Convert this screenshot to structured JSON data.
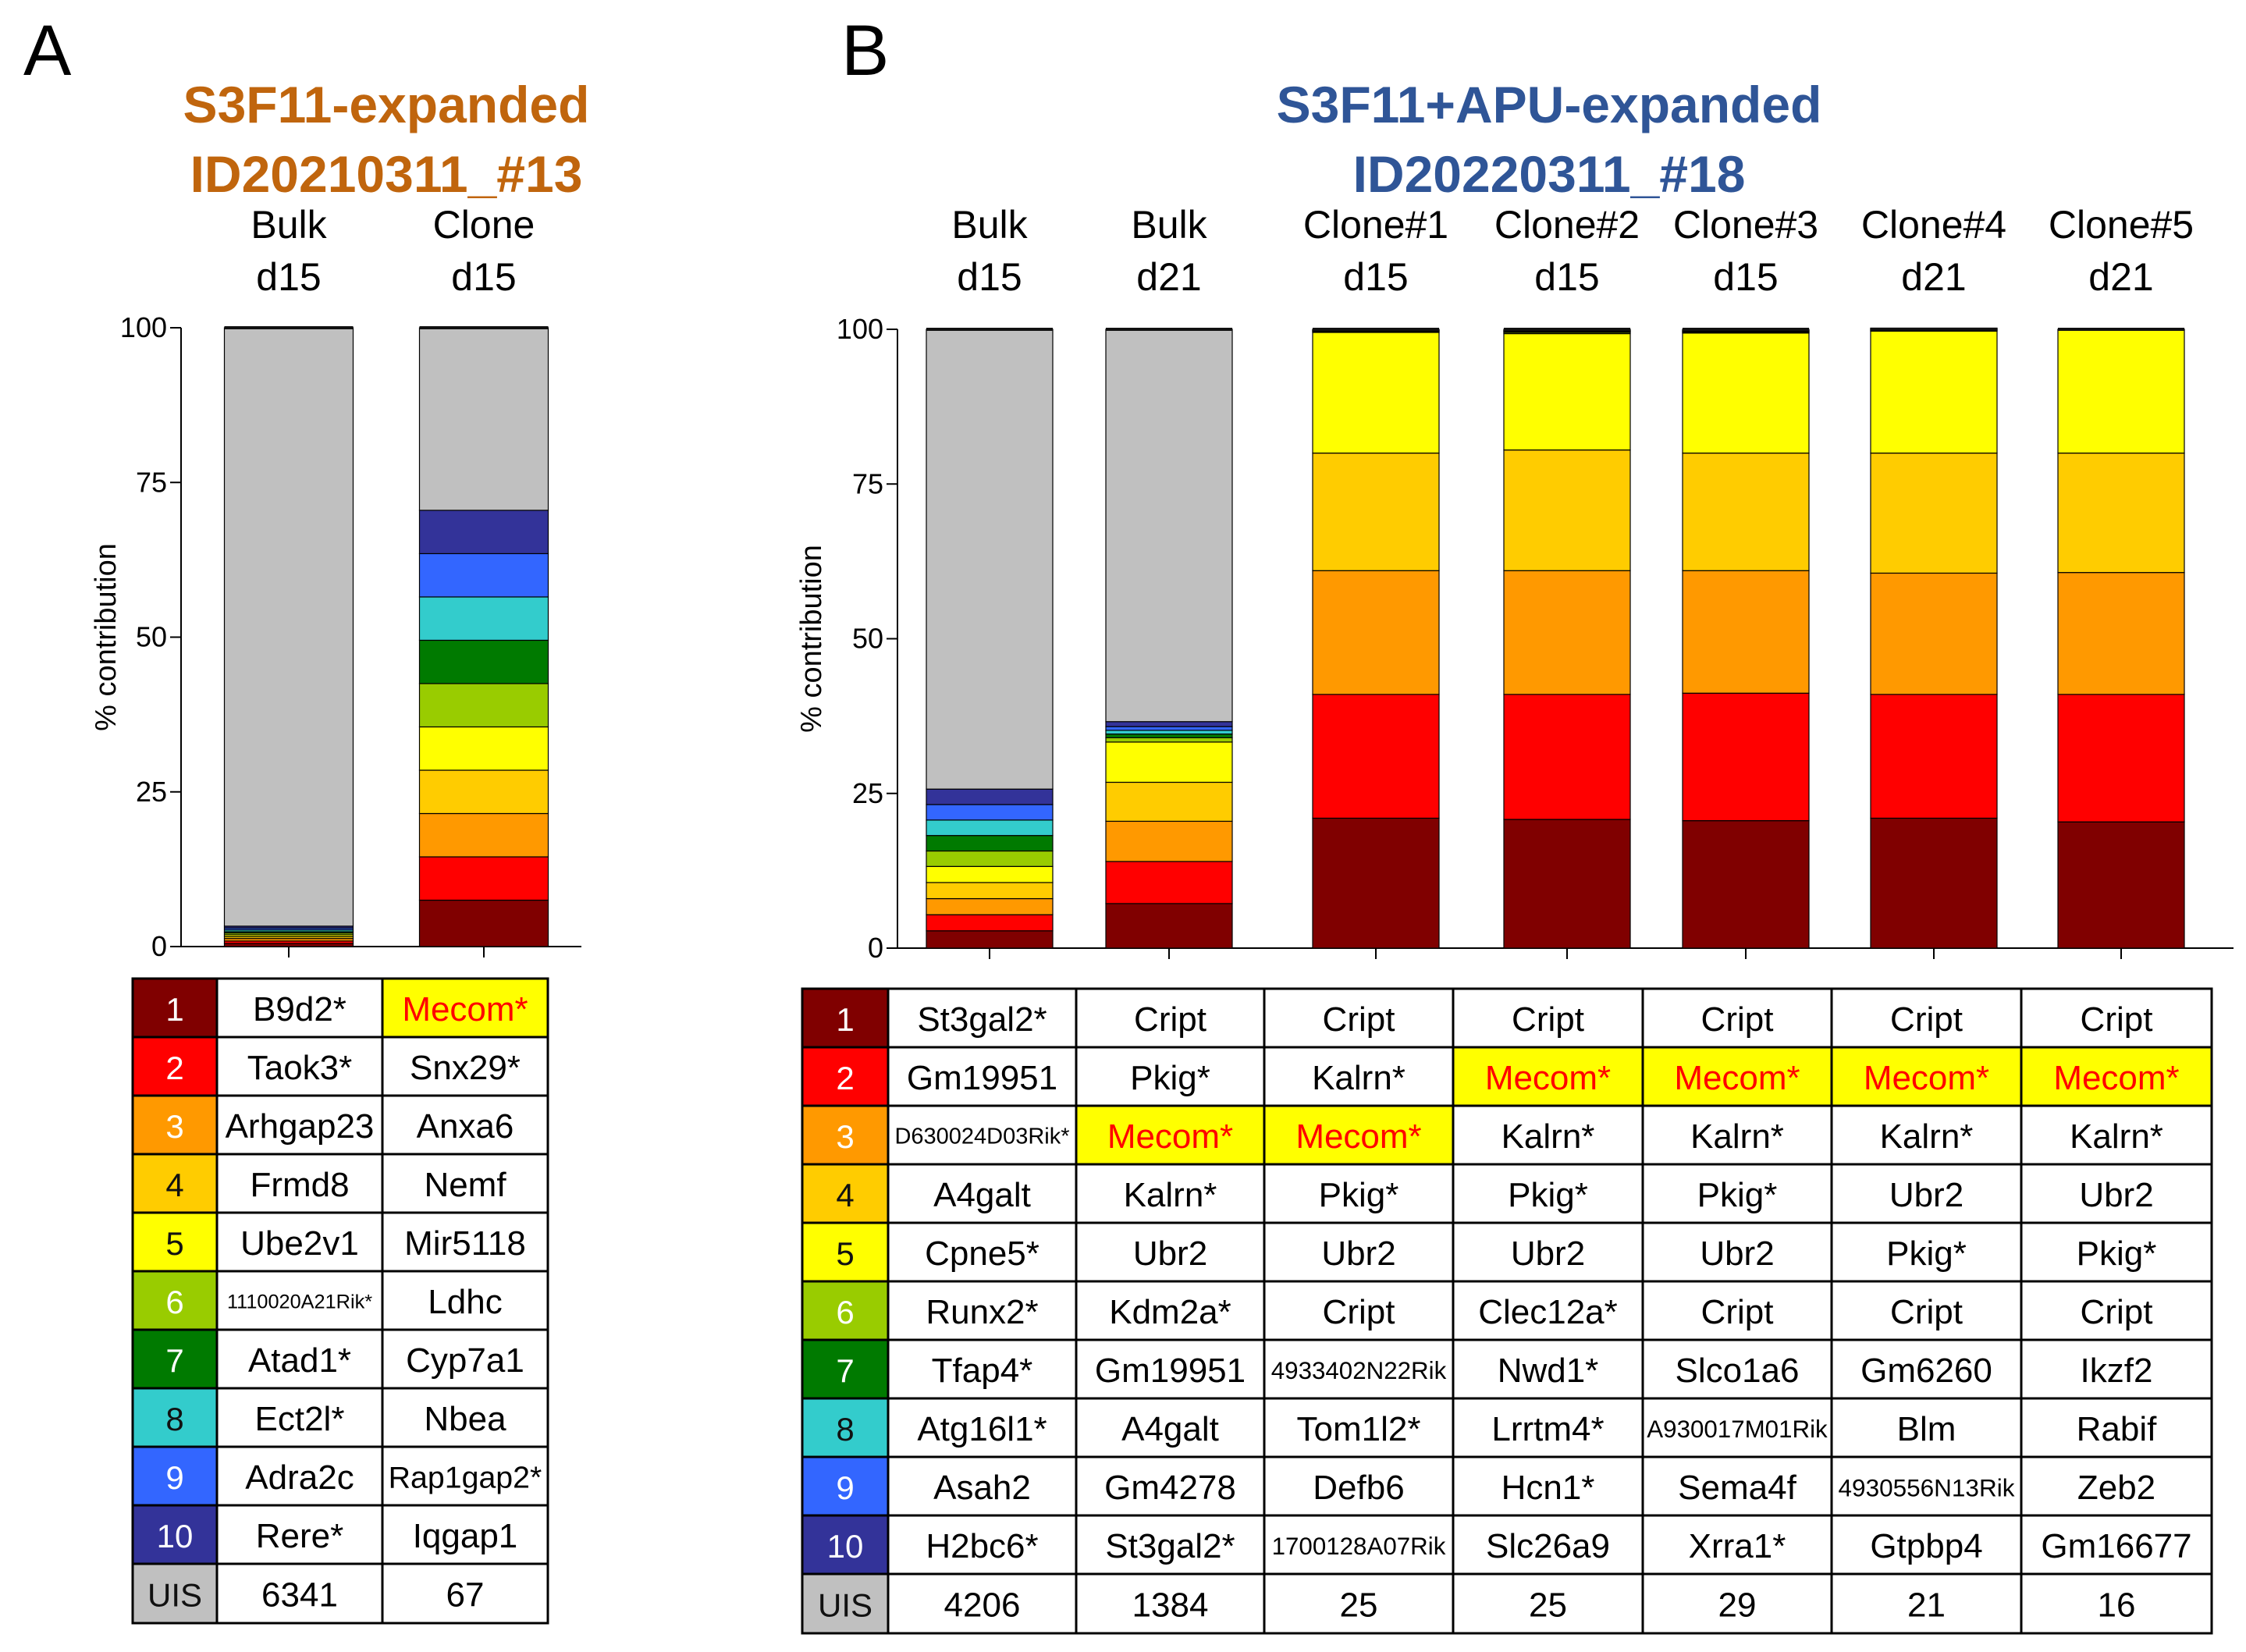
{
  "colors": [
    "#800000",
    "#ff0000",
    "#ff9900",
    "#ffcc00",
    "#ffff00",
    "#99cc00",
    "#007a00",
    "#33cccc",
    "#3366ff",
    "#333399"
  ],
  "rest_color": "#c0c0c0",
  "highlight_fill": "#ffff00",
  "highlight_text": "#ff0000",
  "chart_data": [
    {
      "type": "bar",
      "subtype": "stacked-100",
      "panel": "A",
      "title": "S3F11-expanded",
      "subtitle": "ID20210311_#13",
      "title_color": "#c0650d",
      "ylabel": "% contribution",
      "ylim": [
        0,
        100
      ],
      "yticks": [
        "0",
        "25",
        "50",
        "75",
        "100"
      ],
      "categories": [
        {
          "line1": "Bulk",
          "line2": "d15"
        },
        {
          "line1": "Clone",
          "line2": "d15"
        }
      ],
      "stacks": [
        [
          0.5,
          0.4,
          0.4,
          0.3,
          0.3,
          0.3,
          0.2,
          0.3,
          0.3,
          0.3
        ],
        [
          7.5,
          7.0,
          7.0,
          7.0,
          7.0,
          7.0,
          7.0,
          7.0,
          7.0,
          7.0
        ]
      ],
      "table": {
        "rank_labels": [
          "1",
          "2",
          "3",
          "4",
          "5",
          "6",
          "7",
          "8",
          "9",
          "10"
        ],
        "uis_label": "UIS",
        "columns": [
          {
            "genes": [
              "B9d2*",
              "Taok3*",
              "Arhgap23",
              "Frmd8",
              "Ube2v1",
              "1110020A21Rik*",
              "Atad1*",
              "Ect2l*",
              "Adra2c",
              "Rere*"
            ],
            "uis": "6341"
          },
          {
            "genes": [
              "Mecom*",
              "Snx29*",
              "Anxa6",
              "Nemf",
              "Mir5118",
              "Ldhc",
              "Cyp7a1",
              "Nbea",
              "Rap1gap2*",
              "Iqgap1"
            ],
            "uis": "67"
          }
        ]
      }
    },
    {
      "type": "bar",
      "subtype": "stacked-100",
      "panel": "B",
      "title": "S3F11+APU-expanded",
      "subtitle": "ID20220311_#18",
      "title_color": "#2f5597",
      "ylabel": "% contribution",
      "ylim": [
        0,
        100
      ],
      "yticks": [
        "0",
        "25",
        "50",
        "75",
        "100"
      ],
      "categories": [
        {
          "line1": "Bulk",
          "line2": "d15"
        },
        {
          "line1": "Bulk",
          "line2": "d21"
        },
        {
          "line1": "Clone#1",
          "line2": "d15"
        },
        {
          "line1": "Clone#2",
          "line2": "d15"
        },
        {
          "line1": "Clone#3",
          "line2": "d15"
        },
        {
          "line1": "Clone#4",
          "line2": "d21"
        },
        {
          "line1": "Clone#5",
          "line2": "d21"
        }
      ],
      "stacks": [
        [
          2.8,
          2.6,
          2.6,
          2.6,
          2.6,
          2.5,
          2.5,
          2.5,
          2.5,
          2.5
        ],
        [
          7.2,
          6.8,
          6.5,
          6.3,
          6.5,
          0.7,
          0.6,
          0.6,
          0.6,
          0.8
        ],
        [
          21.0,
          20.0,
          20.0,
          19.0,
          19.5,
          0.1,
          0.1,
          0.1,
          0.1,
          0.1
        ],
        [
          20.8,
          20.2,
          20.0,
          19.5,
          18.8,
          0.2,
          0.1,
          0.1,
          0.1,
          0.2
        ],
        [
          20.6,
          20.6,
          19.8,
          19.0,
          19.4,
          0.1,
          0.1,
          0.1,
          0.1,
          0.2
        ],
        [
          21.0,
          20.0,
          19.6,
          19.4,
          19.7,
          0.1,
          0.1,
          0.1,
          0.1,
          0.1
        ],
        [
          20.4,
          20.6,
          19.7,
          19.3,
          19.9,
          0.0,
          0.0,
          0.0,
          0.0,
          0.1
        ]
      ],
      "table": {
        "rank_labels": [
          "1",
          "2",
          "3",
          "4",
          "5",
          "6",
          "7",
          "8",
          "9",
          "10"
        ],
        "uis_label": "UIS",
        "columns": [
          {
            "genes": [
              "St3gal2*",
              "Gm19951",
              "D630024D03Rik*",
              "A4galt",
              "Cpne5*",
              "Runx2*",
              "Tfap4*",
              "Atg16l1*",
              "Asah2",
              "H2bc6*"
            ],
            "uis": "4206"
          },
          {
            "genes": [
              "Cript",
              "Pkig*",
              "Mecom*",
              "Kalrn*",
              "Ubr2",
              "Kdm2a*",
              "Gm19951",
              "A4galt",
              "Gm4278",
              "St3gal2*"
            ],
            "uis": "1384"
          },
          {
            "genes": [
              "Cript",
              "Kalrn*",
              "Mecom*",
              "Pkig*",
              "Ubr2",
              "Cript",
              "4933402N22Rik",
              "Tom1l2*",
              "Defb6",
              "1700128A07Rik"
            ],
            "uis": "25"
          },
          {
            "genes": [
              "Cript",
              "Mecom*",
              "Kalrn*",
              "Pkig*",
              "Ubr2",
              "Clec12a*",
              "Nwd1*",
              "Lrrtm4*",
              "Hcn1*",
              "Slc26a9"
            ],
            "uis": "25"
          },
          {
            "genes": [
              "Cript",
              "Mecom*",
              "Kalrn*",
              "Pkig*",
              "Ubr2",
              "Cript",
              "Slco1a6",
              "A930017M01Rik",
              "Sema4f",
              "Xrra1*"
            ],
            "uis": "29"
          },
          {
            "genes": [
              "Cript",
              "Mecom*",
              "Kalrn*",
              "Ubr2",
              "Pkig*",
              "Cript",
              "Gm6260",
              "Blm",
              "4930556N13Rik",
              "Gtpbp4"
            ],
            "uis": "21"
          },
          {
            "genes": [
              "Cript",
              "Mecom*",
              "Kalrn*",
              "Ubr2",
              "Pkig*",
              "Cript",
              "Ikzf2",
              "Rabif",
              "Zeb2",
              "Gm16677"
            ],
            "uis": "16"
          }
        ]
      }
    }
  ]
}
